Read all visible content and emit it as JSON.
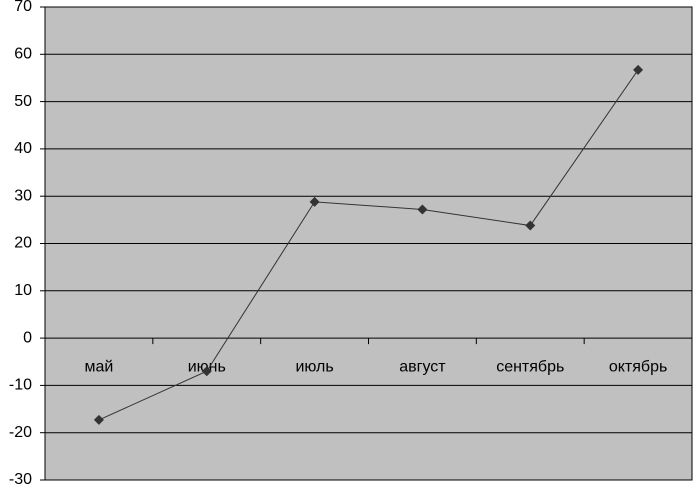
{
  "chart_data": {
    "type": "line",
    "categories": [
      "май",
      "июнь",
      "июль",
      "август",
      "сентябрь",
      "октябрь"
    ],
    "values": [
      -17.3,
      -7,
      28.8,
      27.2,
      23.8,
      56.7
    ],
    "color": "#333333",
    "ylim": [
      -30,
      70
    ],
    "yticks": [
      -30,
      -20,
      -10,
      0,
      10,
      20,
      30,
      40,
      50,
      60,
      70
    ],
    "grid": true
  }
}
